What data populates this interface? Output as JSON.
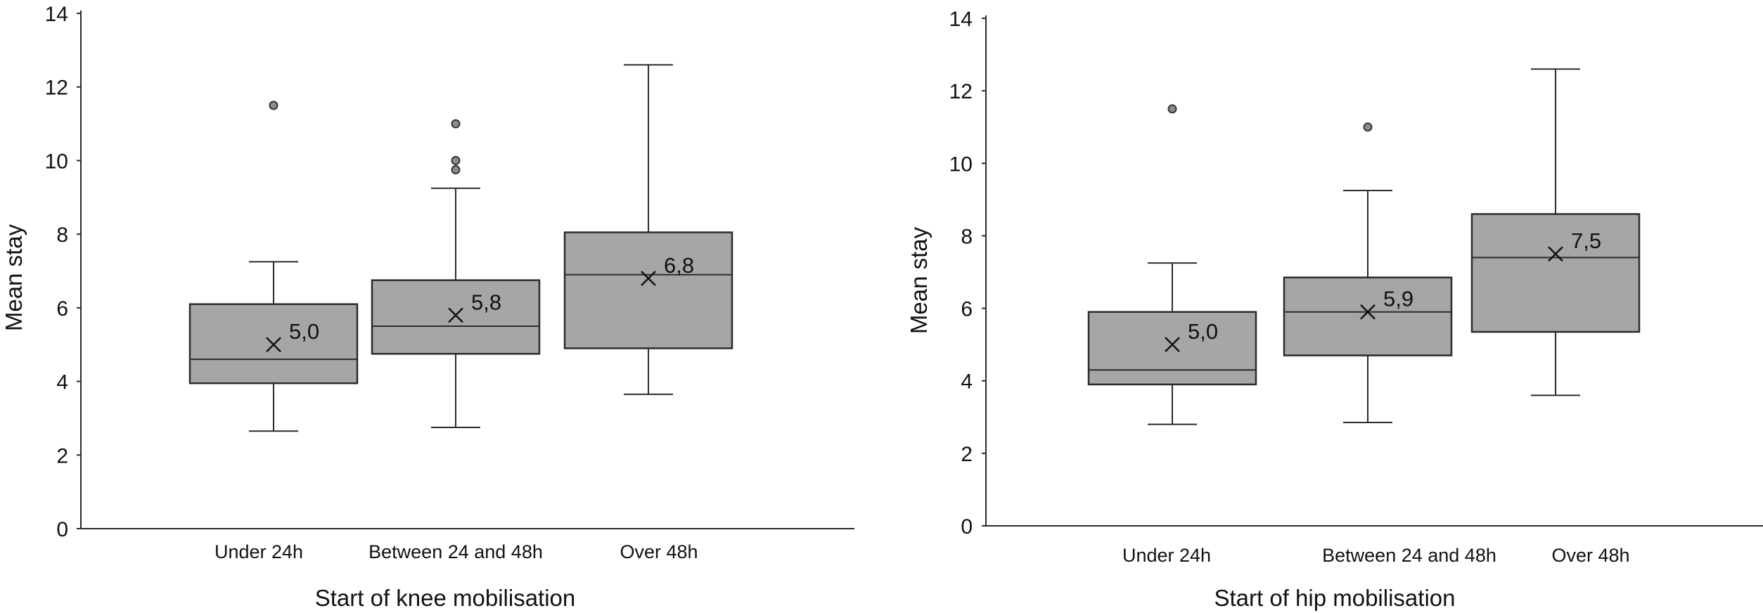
{
  "chart_data": [
    {
      "type": "boxplot",
      "xlabel": "Start of knee mobilisation",
      "ylabel": "Mean stay",
      "ylim": [
        0,
        14
      ],
      "yticks": [
        0,
        2,
        4,
        6,
        8,
        10,
        12,
        14
      ],
      "grid": false,
      "categories": [
        "Under 24h",
        "Between 24 and 48h",
        "Over 48h"
      ],
      "box_color": "#a6a6a6",
      "boxes": [
        {
          "category": "Under 24h",
          "min": 2.65,
          "q1": 3.95,
          "median": 4.6,
          "q3": 6.1,
          "max": 7.25,
          "mean": 5.0,
          "mean_label": "5,0",
          "outliers": [
            11.5
          ]
        },
        {
          "category": "Between 24 and 48h",
          "min": 2.75,
          "q1": 4.75,
          "median": 5.5,
          "q3": 6.75,
          "max": 9.25,
          "mean": 5.8,
          "mean_label": "5,8",
          "outliers": [
            9.75,
            10.0,
            11.0
          ]
        },
        {
          "category": "Over 48h",
          "min": 3.65,
          "q1": 4.9,
          "median": 6.9,
          "q3": 8.05,
          "max": 12.6,
          "mean": 6.8,
          "mean_label": "6,8",
          "outliers": []
        }
      ]
    },
    {
      "type": "boxplot",
      "xlabel": "Start of hip mobilisation",
      "ylabel": "Mean stay",
      "ylim": [
        0,
        14
      ],
      "yticks": [
        0,
        2,
        4,
        6,
        8,
        10,
        12,
        14
      ],
      "grid": false,
      "categories": [
        "Under 24h",
        "Between 24 and 48h",
        "Over 48h"
      ],
      "box_color": "#a6a6a6",
      "boxes": [
        {
          "category": "Under 24h",
          "min": 2.8,
          "q1": 3.9,
          "median": 4.3,
          "q3": 5.9,
          "max": 7.25,
          "mean": 5.0,
          "mean_label": "5,0",
          "outliers": [
            11.5
          ]
        },
        {
          "category": "Between 24 and 48h",
          "min": 2.85,
          "q1": 4.7,
          "median": 5.9,
          "q3": 6.85,
          "max": 9.25,
          "mean": 5.9,
          "mean_label": "5,9",
          "outliers": [
            11.0
          ]
        },
        {
          "category": "Over 48h",
          "min": 3.6,
          "q1": 5.35,
          "median": 7.4,
          "q3": 8.6,
          "max": 12.6,
          "mean": 7.5,
          "mean_label": "7,5",
          "outliers": []
        }
      ]
    }
  ]
}
